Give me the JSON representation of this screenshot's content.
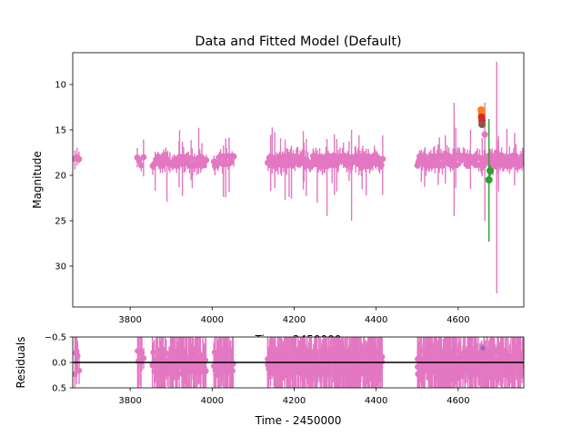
{
  "chart_data": [
    {
      "type": "scatter",
      "panel": "main",
      "title": "Data and Fitted Model (Default)",
      "xlabel": "Time - 2450000",
      "ylabel": "Magnitude",
      "xlim": [
        3660,
        4760
      ],
      "ylim": [
        34.5,
        6.5
      ],
      "y_inverted": true,
      "grid": false,
      "xticks": [
        3800,
        4000,
        4200,
        4400,
        4600
      ],
      "yticks": [
        10,
        15,
        20,
        25,
        30
      ],
      "series": [
        {
          "color": "#e377c2",
          "base_mag": 18.4,
          "segments": [
            [
              3665,
              3675,
              3
            ],
            [
              3818,
              3832,
              4
            ],
            [
              3855,
              3985,
              50
            ],
            [
              4005,
              4052,
              18
            ],
            [
              4135,
              4415,
              130
            ],
            [
              4500,
              4762,
              120
            ]
          ],
          "notable_points": [
            {
              "x": 4590,
              "y": 18.0,
              "err_low": 6.5,
              "err_high": 6.0
            },
            {
              "x": 4630,
              "y": 18.0,
              "err_low": 3.5,
              "err_high": 3.0
            },
            {
              "x": 4665,
              "y": 15.5,
              "err_low": 9.5,
              "err_high": 3.5
            },
            {
              "x": 4694,
              "y": 17.5,
              "err_low": 15.5,
              "err_high": 10.0
            },
            {
              "x": 4340,
              "y": 18.5,
              "err_low": 6.5,
              "err_high": 3.5
            },
            {
              "x": 4280,
              "y": 19.0,
              "err_low": 5.5,
              "err_high": 3.0
            }
          ]
        },
        {
          "color": "#2ca02c",
          "points": [
            {
              "x": 4675,
              "y": 20.5,
              "err_low": 6.8,
              "err_high": 6.7
            },
            {
              "x": 4678,
              "y": 19.5,
              "err_low": 0.6,
              "err_high": 0.6
            }
          ]
        },
        {
          "color": "#ff7f0e",
          "points": [
            {
              "x": 4656,
              "y": 12.8,
              "err_low": 0.2,
              "err_high": 0.2
            },
            {
              "x": 4657,
              "y": 13.2,
              "err_low": 0.2,
              "err_high": 0.2
            }
          ]
        },
        {
          "color": "#d62728",
          "points": [
            {
              "x": 4657,
              "y": 13.6,
              "err_low": 0.2,
              "err_high": 0.2
            },
            {
              "x": 4658,
              "y": 14.0,
              "err_low": 0.2,
              "err_high": 0.2
            }
          ]
        },
        {
          "color": "#8c564b",
          "points": [
            {
              "x": 4658,
              "y": 14.4,
              "err_low": 0.2,
              "err_high": 0.2
            }
          ]
        }
      ]
    },
    {
      "type": "scatter",
      "panel": "residuals",
      "xlabel": "Time - 2450000",
      "ylabel": "Residuals",
      "xlim": [
        3660,
        4760
      ],
      "ylim": [
        0.5,
        -0.5
      ],
      "y_inverted": true,
      "xticks": [
        3800,
        4000,
        4200,
        4400,
        4600
      ],
      "yticks": [
        -0.5,
        0.0,
        0.5
      ],
      "ytick_labels": [
        "−0.5",
        "0.0",
        "0.5"
      ],
      "zero_line": {
        "y": 0.0,
        "color": "#000000"
      },
      "series": [
        {
          "color": "#e377c2",
          "note": "residual error bars extend beyond axis range"
        },
        {
          "color": "#9467bd",
          "points": [
            {
              "x": 4660,
              "y": -0.28
            }
          ]
        }
      ]
    }
  ]
}
